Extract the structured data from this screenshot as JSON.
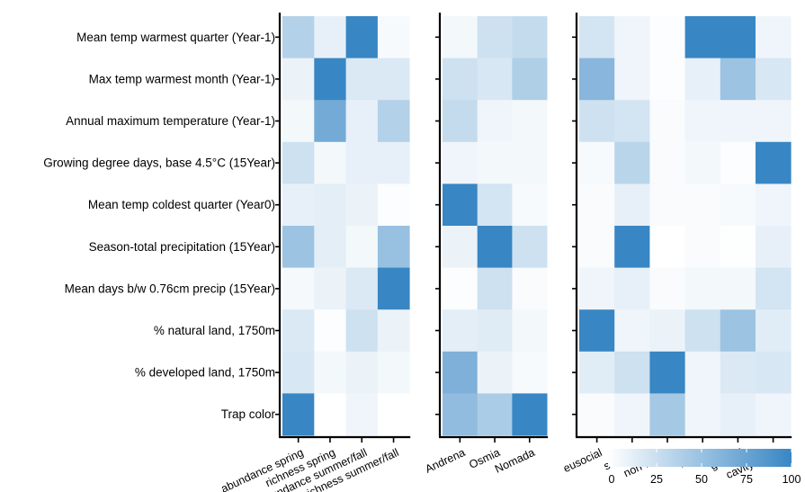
{
  "chart_data": {
    "type": "heatmap",
    "rows": [
      "Mean temp warmest quarter (Year-1)",
      "Max temp warmest month (Year-1)",
      "Annual maximum temperature (Year-1)",
      "Growing degree days, base 4.5°C (15Year)",
      "Mean temp coldest quarter (Year0)",
      "Season-total precipitation (15Year)",
      "Mean days b/w 0.76cm precip (15Year)",
      "% natural land, 1750m",
      "% developed land, 1750m",
      "Trap color"
    ],
    "panels": [
      {
        "columns": [
          "abundance spring",
          "richness spring",
          "abundance summer/fall",
          "richness summer/fall"
        ],
        "values": [
          [
            38,
            12,
            100,
            4
          ],
          [
            10,
            100,
            18,
            18
          ],
          [
            6,
            70,
            12,
            38
          ],
          [
            25,
            6,
            12,
            12
          ],
          [
            12,
            14,
            10,
            2
          ],
          [
            50,
            14,
            6,
            52
          ],
          [
            5,
            10,
            18,
            100
          ],
          [
            18,
            2,
            25,
            10
          ],
          [
            20,
            6,
            10,
            6
          ],
          [
            100,
            0,
            8,
            0
          ]
        ]
      },
      {
        "columns": [
          "Andrena",
          "Osmia",
          "Nomada"
        ],
        "values": [
          [
            6,
            25,
            30
          ],
          [
            25,
            20,
            40
          ],
          [
            30,
            8,
            6
          ],
          [
            8,
            6,
            6
          ],
          [
            100,
            22,
            4
          ],
          [
            10,
            100,
            25
          ],
          [
            2,
            25,
            3
          ],
          [
            14,
            16,
            6
          ],
          [
            65,
            10,
            4
          ],
          [
            55,
            42,
            100
          ]
        ]
      },
      {
        "columns": [
          "eusocial",
          "solitary",
          "non-native",
          "native",
          "ground",
          "cavity/stem"
        ],
        "values": [
          [
            22,
            8,
            2,
            100,
            100,
            8
          ],
          [
            60,
            8,
            2,
            12,
            50,
            20
          ],
          [
            25,
            22,
            3,
            8,
            8,
            8
          ],
          [
            4,
            35,
            3,
            6,
            2,
            100
          ],
          [
            3,
            12,
            3,
            3,
            4,
            8
          ],
          [
            3,
            100,
            0,
            3,
            1,
            12
          ],
          [
            8,
            12,
            3,
            6,
            6,
            22
          ],
          [
            100,
            8,
            10,
            25,
            50,
            15
          ],
          [
            15,
            25,
            100,
            8,
            18,
            20
          ],
          [
            3,
            8,
            45,
            8,
            12,
            8
          ]
        ]
      }
    ],
    "color_scale": {
      "low": "#ffffff",
      "high": "#3886c4",
      "min": 0,
      "max": 100
    },
    "legend": {
      "position": "bottom-right",
      "ticks": [
        0,
        25,
        50,
        75,
        100
      ]
    }
  }
}
